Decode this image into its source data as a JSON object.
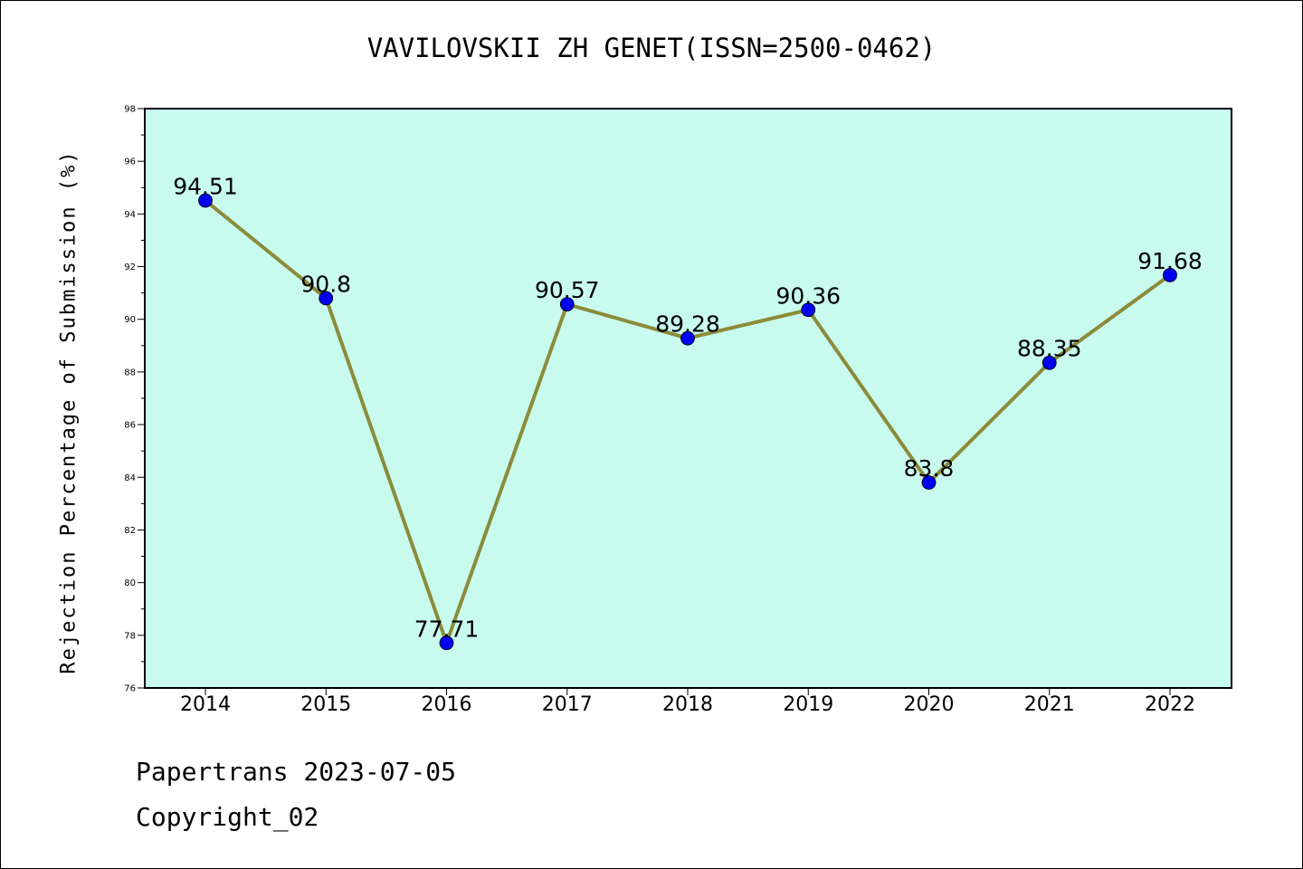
{
  "chart_data": {
    "type": "line",
    "title": "VAVILOVSKII ZH GENET(ISSN=2500-0462)",
    "xlabel": "",
    "ylabel": "Rejection Percentage of Submission (%)",
    "categories": [
      "2014",
      "2015",
      "2016",
      "2017",
      "2018",
      "2019",
      "2020",
      "2021",
      "2022"
    ],
    "series": [
      {
        "values": [
          94.51,
          90.8,
          77.71,
          90.57,
          89.28,
          90.36,
          83.8,
          88.35,
          91.68
        ],
        "labels": [
          "94.51",
          "90.8",
          "77.71",
          "90.57",
          "89.28",
          "90.36",
          "83.8",
          "88.35",
          "91.68"
        ]
      }
    ],
    "ylim": [
      76,
      98
    ],
    "yticks": [
      "76",
      "78",
      "80",
      "82",
      "84",
      "86",
      "88",
      "90",
      "92",
      "94",
      "96",
      "98"
    ],
    "grid": false,
    "colors": {
      "plot_background": "#c8fbee",
      "line": "#8b8b3a",
      "marker": "#0000ee"
    }
  },
  "footer": {
    "line1": "Papertrans 2023-07-05",
    "line2": "Copyright_02"
  }
}
